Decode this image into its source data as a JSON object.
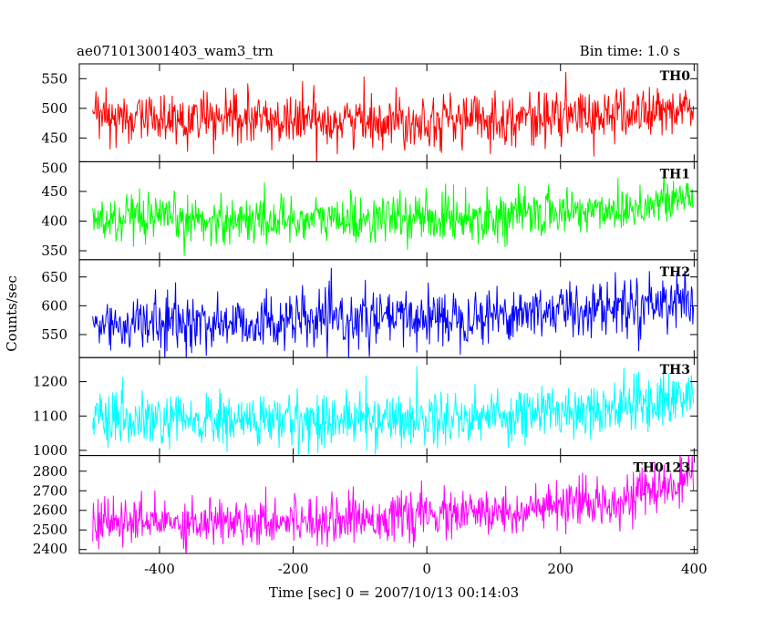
{
  "chart_data": {
    "type": "line",
    "title": "ae071013001403_wam3_trn",
    "subtitle": "Bin time: 1.0 s",
    "xlabel": "Time [sec] 0 = 2007/10/13 00:14:03",
    "ylabel": "Counts/sec",
    "xlim": [
      -520,
      405
    ],
    "x_ticks": [
      -400,
      -200,
      0,
      200,
      400
    ],
    "x_start": -500,
    "x_end": 399,
    "x_step": 1,
    "grid": false,
    "panels": [
      {
        "name": "TH0",
        "color": "#ff0000",
        "ylim": [
          410,
          575
        ],
        "y_ticks": [
          450,
          500,
          550
        ],
        "trend": [
          [
            -500,
            485
          ],
          [
            -300,
            480
          ],
          [
            -100,
            480
          ],
          [
            100,
            482
          ],
          [
            300,
            490
          ],
          [
            399,
            500
          ]
        ],
        "noise": 22
      },
      {
        "name": "TH1",
        "color": "#00ff00",
        "ylim": [
          335,
          500
        ],
        "y_ticks": [
          350,
          400,
          450,
          500
        ],
        "trend": [
          [
            -500,
            400
          ],
          [
            -300,
            402
          ],
          [
            -100,
            403
          ],
          [
            100,
            408
          ],
          [
            300,
            422
          ],
          [
            399,
            440
          ]
        ],
        "noise": 20
      },
      {
        "name": "TH2",
        "color": "#0000ff",
        "ylim": [
          510,
          680
        ],
        "y_ticks": [
          550,
          600,
          650
        ],
        "trend": [
          [
            -500,
            568
          ],
          [
            -300,
            570
          ],
          [
            -100,
            575
          ],
          [
            100,
            585
          ],
          [
            300,
            600
          ],
          [
            399,
            615
          ]
        ],
        "noise": 24
      },
      {
        "name": "TH3",
        "color": "#00ffff",
        "ylim": [
          985,
          1270
        ],
        "y_ticks": [
          1000,
          1100,
          1200
        ],
        "trend": [
          [
            -500,
            1080
          ],
          [
            -300,
            1085
          ],
          [
            -100,
            1090
          ],
          [
            100,
            1100
          ],
          [
            300,
            1130
          ],
          [
            399,
            1160
          ]
        ],
        "noise": 40
      },
      {
        "name": "TH0123",
        "color": "#ff00ff",
        "ylim": [
          2380,
          2880
        ],
        "y_ticks": [
          2400,
          2500,
          2600,
          2700,
          2800
        ],
        "trend": [
          [
            -500,
            2535
          ],
          [
            -300,
            2545
          ],
          [
            -100,
            2560
          ],
          [
            100,
            2585
          ],
          [
            250,
            2630
          ],
          [
            399,
            2750
          ]
        ],
        "noise": 60
      }
    ]
  }
}
